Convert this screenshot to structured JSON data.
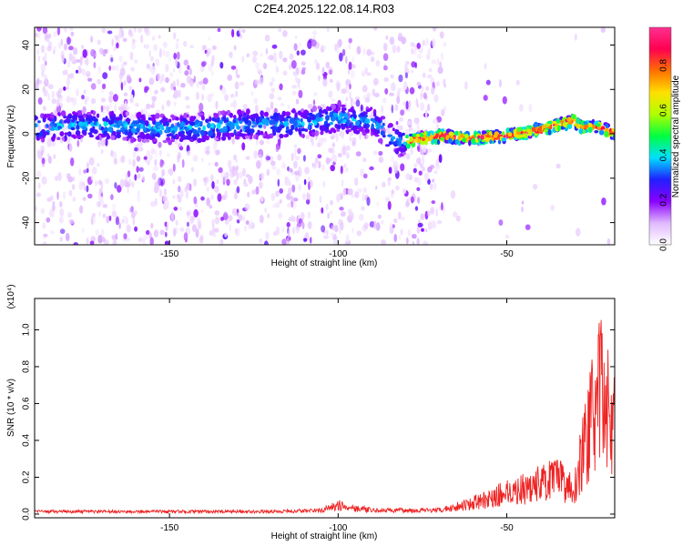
{
  "title": "C2E4.2025.122.08.14.R03",
  "chart_data": [
    {
      "type": "heatmap",
      "xlabel": "Height of straight line (km)",
      "ylabel": "Frequency (Hz)",
      "xlim": [
        -190,
        -18
      ],
      "ylim": [
        -50,
        48
      ],
      "xticks": [
        -150,
        -100,
        -50
      ],
      "yticks": [
        -40,
        -20,
        0,
        20,
        40
      ],
      "colorbar": {
        "label": "Normalized spectral amplitude",
        "range": [
          0,
          0.97
        ],
        "ticks": [
          0.0,
          0.2,
          0.4,
          0.6,
          0.8
        ],
        "tick_labels": [
          "0.0",
          "0.2",
          "0.4",
          "0.6",
          "0.8"
        ],
        "colors": [
          "#ffffff",
          "#e0b8ff",
          "#8a00ff",
          "#2020ff",
          "#00e0ff",
          "#00ff40",
          "#b0ff00",
          "#ffe000",
          "#ff7000",
          "#ff0050",
          "#ff3090"
        ]
      },
      "ridge": {
        "x": [
          -190,
          -170,
          -150,
          -130,
          -110,
          -100,
          -90,
          -82,
          -75,
          -68,
          -60,
          -50,
          -40,
          -30,
          -28,
          -22,
          -18
        ],
        "y": [
          3,
          4,
          2,
          4,
          5,
          7,
          6,
          -4,
          -2,
          -1,
          -2,
          -1,
          2,
          6,
          3,
          3,
          0
        ]
      }
    },
    {
      "type": "line",
      "xlabel": "Height of straight line (km)",
      "ylabel": "SNR (10 * v/v)",
      "scale_note": "(x10⁴)",
      "xlim": [
        -190,
        -18
      ],
      "ylim": [
        -0.02,
        1.17
      ],
      "xticks": [
        -150,
        -100,
        -50
      ],
      "yticks": [
        0.0,
        0.2,
        0.4,
        0.6,
        0.8,
        1.0
      ],
      "ytick_labels": [
        "0.0",
        "0.2",
        "0.4",
        "0.6",
        "0.8",
        "1.0"
      ],
      "color": "#ee2222",
      "envelope": {
        "x": [
          -190,
          -120,
          -105,
          -100,
          -95,
          -90,
          -70,
          -65,
          -55,
          -50,
          -45,
          -40,
          -35,
          -30,
          -27,
          -25,
          -22,
          -20,
          -18
        ],
        "y": [
          0.02,
          0.02,
          0.03,
          0.07,
          0.05,
          0.03,
          0.03,
          0.06,
          0.12,
          0.18,
          0.2,
          0.25,
          0.28,
          0.2,
          0.55,
          0.75,
          1.0,
          0.85,
          0.7
        ]
      }
    }
  ]
}
